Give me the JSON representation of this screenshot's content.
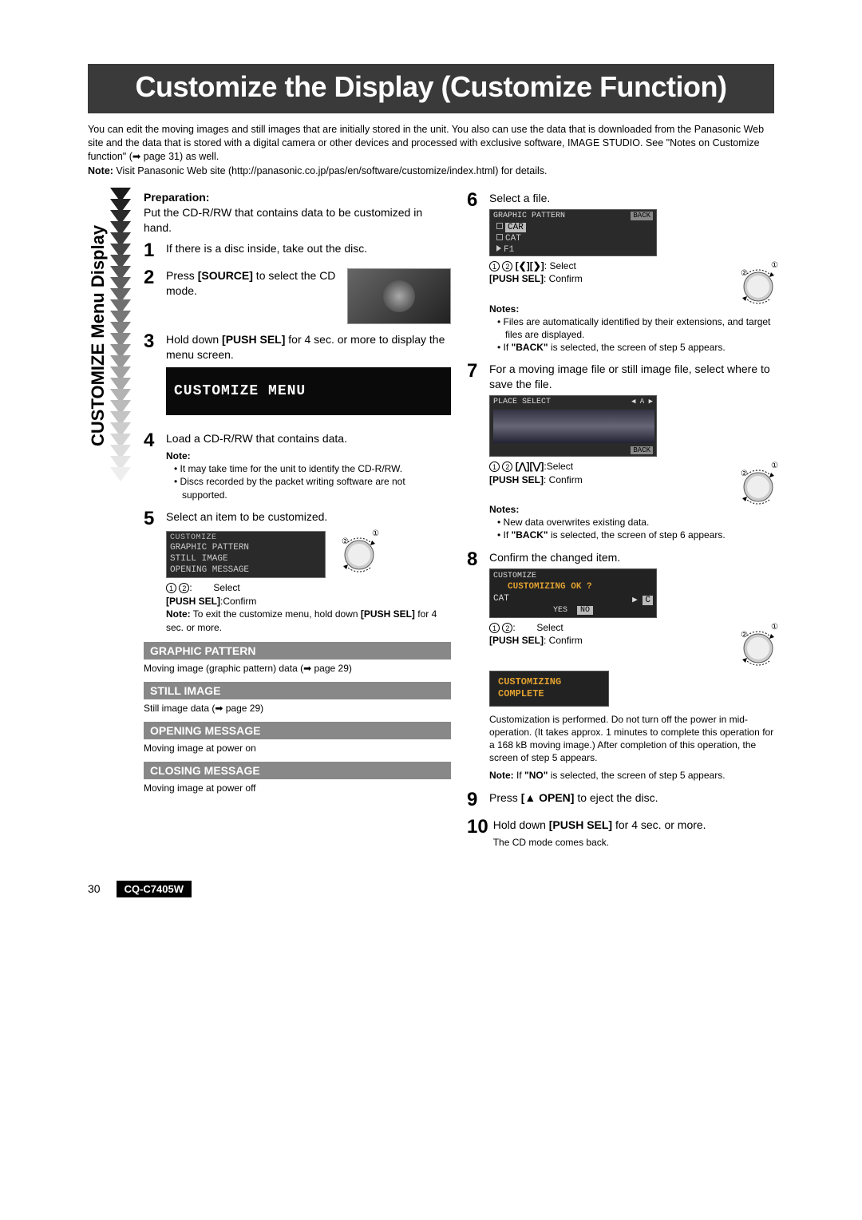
{
  "title": "Customize the Display (Customize Function)",
  "intro": "You can edit the moving images and still images that are initially stored in the unit. You also can use the data that is downloaded from the Panasonic Web site and the data that is stored with a digital camera or other devices and processed with exclusive software, IMAGE STUDIO. See \"Notes on Customize function\" (➡ page 31) as well.",
  "intro_note_label": "Note:",
  "intro_note": " Visit Panasonic Web site (http://panasonic.co.jp/pas/en/software/customize/index.html) for details.",
  "vertical_label": "CUSTOMIZE Menu Display",
  "chevron_colors": [
    "#1a1a1a",
    "#222",
    "#2a2a2a",
    "#333",
    "#3b3b3b",
    "#444",
    "#4c4c4c",
    "#555",
    "#5e5e5e",
    "#666",
    "#6f6f6f",
    "#777",
    "#808080",
    "#888",
    "#909090",
    "#999",
    "#a2a2a2",
    "#aaa",
    "#b3b3b3",
    "#bbb",
    "#c4c4c4",
    "#ccc",
    "#d4d4d4",
    "#ddd",
    "#e5e5e5",
    "#eee"
  ],
  "prep_label": "Preparation:",
  "prep_text": "Put the CD-R/RW that contains data to be customized in hand.",
  "steps": {
    "s1": "If there is a disc inside, take out the disc.",
    "s2_a": "Press ",
    "s2_b": "[SOURCE]",
    "s2_c": " to select the CD mode.",
    "s3_a": "Hold down ",
    "s3_b": "[PUSH SEL]",
    "s3_c": " for 4 sec. or more to display the menu screen.",
    "s4": "Load a CD-R/RW that contains data.",
    "s5": "Select an item to be customized.",
    "s6": "Select a file.",
    "s7": "For a moving image file or still image file, select where to save the file.",
    "s8": "Confirm the changed item.",
    "s9_a": "Press ",
    "s9_b": "[▲ OPEN]",
    "s9_c": " to eject the disc.",
    "s10_a": "Hold down ",
    "s10_b": "[PUSH SEL]",
    "s10_c": " for 4 sec. or more.",
    "s10_d": "The CD mode comes back."
  },
  "menu_box": "CUSTOMIZE MENU",
  "note4_label": "Note:",
  "note4_a": "It may take time for the unit to identify the CD-R/RW.",
  "note4_b": "Discs recorded by the packet writing software are not supported.",
  "lcd5": {
    "header": "CUSTOMIZE",
    "i1": "GRAPHIC PATTERN",
    "i2": "STILL IMAGE",
    "i3": "OPENING MESSAGE"
  },
  "knob5": {
    "select": "Select",
    "push": "[PUSH SEL]",
    "confirm": ":Confirm"
  },
  "note5": "To exit the customize menu, hold down ",
  "note5b": "[PUSH SEL]",
  "note5c": " for 4 sec. or more.",
  "sections": {
    "gp": {
      "title": "GRAPHIC PATTERN",
      "desc": "Moving image (graphic pattern) data (➡ page 29)"
    },
    "si": {
      "title": "STILL IMAGE",
      "desc": "Still image data (➡ page 29)"
    },
    "om": {
      "title": "OPENING MESSAGE",
      "desc": "Moving image at power on"
    },
    "cm": {
      "title": "CLOSING MESSAGE",
      "desc": "Moving image at power off"
    }
  },
  "lcd6": {
    "header": "GRAPHIC PATTERN",
    "back": "BACK",
    "i1": "CAR",
    "i2": "CAT",
    "i3": "F1"
  },
  "knob6": {
    "arrows": "[❮][❯]",
    "select": ":  Select",
    "push": "[PUSH SEL]",
    "confirm": ":  Confirm"
  },
  "notes6_label": "Notes:",
  "notes6_a": "Files are automatically identified by their extensions, and target files are displayed.",
  "notes6_b_1": "If ",
  "notes6_b_2": "\"BACK\"",
  "notes6_b_3": " is selected, the screen of step 5 appears.",
  "lcd7": {
    "header": "PLACE SELECT",
    "ind": "A",
    "back": "BACK"
  },
  "knob7": {
    "arrows": "[⋀][⋁]",
    "select": ":Select",
    "push": "[PUSH SEL]",
    "confirm": ":  Confirm"
  },
  "notes7_label": "Notes:",
  "notes7_a": "New data overwrites existing data.",
  "notes7_b_1": "If ",
  "notes7_b_2": "\"BACK\"",
  "notes7_b_3": " is selected, the screen of step 6 appears.",
  "lcd8": {
    "header": "CUSTOMIZE",
    "q": "CUSTOMIZING OK ?",
    "cat": "CAT",
    "c": "C",
    "yes": "YES",
    "no": "NO"
  },
  "knob8": {
    "select": "Select",
    "push": "[PUSH SEL]",
    "confirm": ":  Confirm"
  },
  "complete1": "CUSTOMIZING",
  "complete2": "COMPLETE",
  "para8": "Customization is performed. Do not turn off the power in mid-operation. (It takes approx. 1 minutes to complete this operation for a 168 kB moving image.) After completion of this operation, the screen of step 5 appears.",
  "note8_label": "Note:",
  "note8_a": " If ",
  "note8_b": "\"NO\"",
  "note8_c": " is selected, the screen of step 5 appears.",
  "footer": {
    "page": "30",
    "model": "CQ-C7405W"
  }
}
